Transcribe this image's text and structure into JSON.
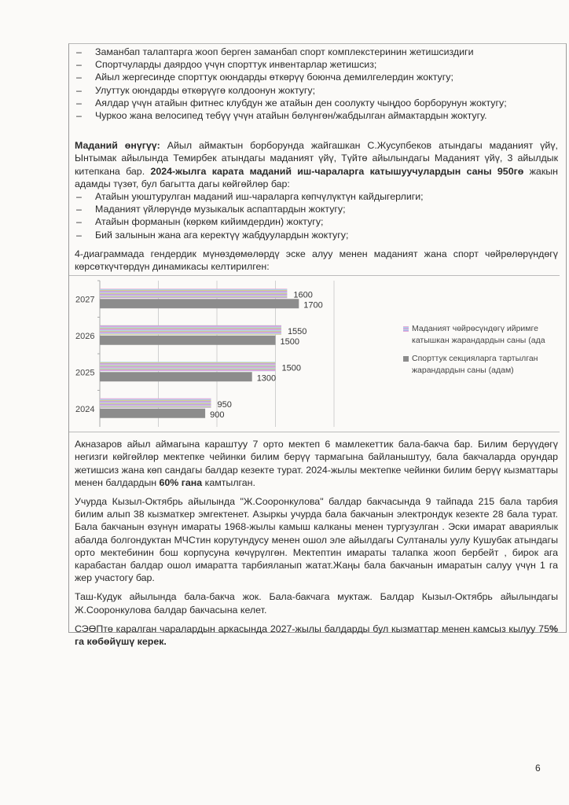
{
  "list_sport": [
    "Заманбап талаптарга жооп берген заманбап спорт комплекстеринин жетишсиздиги",
    "Спортчуларды даярдоо үчүн спорттук инвентарлар жетишсиз;",
    "Айыл жергесинде спорттук оюндарды өткөрүү боюнча демилгелердин жоктугу;",
    "Улуттук оюндарды өткөрүүгө колдоонун жоктугу;",
    "Аялдар үчүн атайын фитнес клубдун же атайын ден соолукту чыңдоо борборунун жоктугу;",
    "Чуркоо жана велосипед тебүү үчүн атайын бөлүнгөн/жабдылган аймактардын жоктугу."
  ],
  "culture": {
    "heading": "Маданий өнүгүү:",
    "text1": " Айыл аймактын борборунда жайгашкан С.Жусупбеков атындагы маданият үйү, Ынтымак айылында Темирбек атындагы маданият үйү, Түйтө айылындагы Маданият үйү, 3 айылдык китепкана бар. ",
    "bold1": "2024-жылга карата маданий иш-чараларга катышуучулардын саны 950гө",
    "text2": " жакын адамды түзөт, бул багытта дагы көйгөйлөр бар:",
    "items": [
      "Атайын уюштурулган маданий иш-чараларга көпчүлүктүн кайдыгерлиги;",
      "Маданият үйлөрүндө музыкалык аспаптардын жоктугу;",
      "Атайын форманын (көркөм кийимдердин) жоктугу;",
      "Бий залынын жана ага керектүү жабдуулардын жоктугу;"
    ]
  },
  "chart_intro": "4-диаграммада гендердик мүнөздөмөлөрдү эске алуу менен маданият жана спорт чөйрөлөрүндөгү көрсөткүчтөрдүн динамикасы келтирилген:",
  "chart_data": {
    "type": "bar",
    "orientation": "horizontal",
    "categories": [
      "2027",
      "2026",
      "2025",
      "2024"
    ],
    "series": [
      {
        "name": "Маданият чөйрөсүндөгү ийримге катышкан жарандардын саны (ада",
        "values": [
          1600,
          1550,
          1500,
          950
        ],
        "color": "#c8b4dc"
      },
      {
        "name": "Спорттук секцияларга тартылган жарандардын саны (адам)",
        "values": [
          1700,
          1500,
          1300,
          900
        ],
        "color": "#8c8c8c"
      }
    ],
    "xlim": [
      0,
      2000
    ],
    "grid": true,
    "data_labels": true,
    "legend": "right"
  },
  "paragraphs": {
    "p1_a": "Акназаров айыл аймагына караштуу 7 орто мектеп  6 мамлекеттик бала-бакча бар. Билим берүүдөгү негизги көйгөйлөр мектепке чейинки билим берүү тармагына байланыштуу, бала бакчаларда орундар жетишсиз жана көп сандагы балдар кезекте турат. 2024-жылы мектепке чейинки билим берүү кызматтары менен балдардын ",
    "p1_bold": "60% гана",
    "p1_b": " камтылган.",
    "p2": "Учурда Кызыл-Октябрь айылында \"Ж.Сооронкулова\" балдар бакчасында 9 тайпада 215 бала тарбия билим алып 38 кызматкер эмгектенет. Азыркы учурда бала бакчанын электрондук кезекте 28 бала турат. Бала бакчанын өзүнүн имараты 1968-жылы камыш калканы менен тургузулган . Эски имарат авариялык абалда болгондуктан МЧСтин корутундусу менен ошол эле айылдагы Султаналы уулу Кушубак атындагы орто мектебинин бош корпусуна көчүрүлгөн. Мектептин имараты талапка жооп бербейт , бирок ага карабастан балдар ошол имаратта тарбияланып жатат.Жаңы бала бакчанын имаратын салуу үчүн 1 га жер участогу бар.",
    "p3": "Таш-Кудук айылында бала-бакча жок. Бала-бакчага муктаж. Балдар Кызыл-Октябрь айылындагы Ж.Сооронкулова балдар бакчасына келет.",
    "p4_a": "СЭӨПтө каралган чаралардын аркасында 2027-жылы балдарды бул кызматтар менен камсыз кылуу 75",
    "p4_bold": "% га көбөйүшү керек."
  },
  "page_number": "6"
}
